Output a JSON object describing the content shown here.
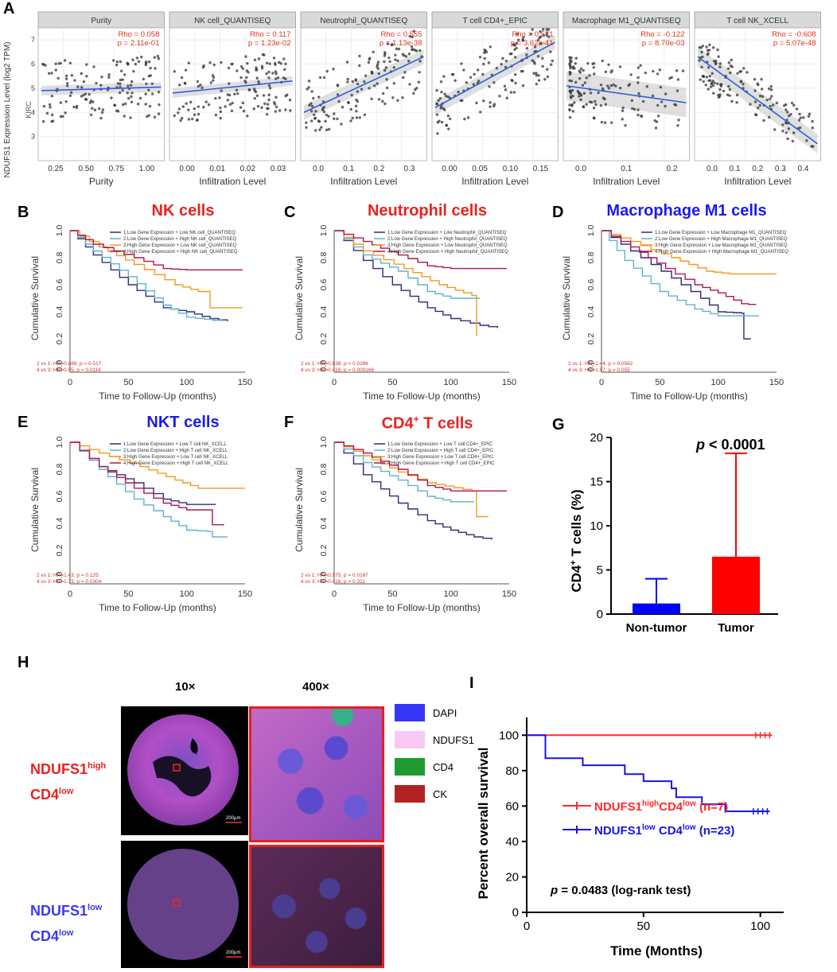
{
  "panels": {
    "A": "A",
    "B": "B",
    "C": "C",
    "D": "D",
    "E": "E",
    "F": "F",
    "G": "G",
    "H": "H",
    "I": "I"
  },
  "panelA": {
    "ylabel": "NDUFS1 Expression Level (log2 TPM)",
    "strip": "KIRC",
    "yticks": [
      "3",
      "4",
      "5",
      "6",
      "7"
    ],
    "subplots": [
      {
        "title": "Purity",
        "rho": "Rho = 0.058",
        "p": "p = 2.11e-01",
        "xlabel": "Purity",
        "xticks": [
          "0.25",
          "0.50",
          "0.75",
          "1.00"
        ],
        "fit": [
          4.9,
          5.05
        ],
        "spread": 0.2
      },
      {
        "title": "NK cell_QUANTISEQ",
        "rho": "Rho = 0.117",
        "p": "p = 1.23e-02",
        "xlabel": "Infiltration Level",
        "xticks": [
          "0.00",
          "0.01",
          "0.02",
          "0.03"
        ],
        "fit": [
          4.8,
          5.3
        ],
        "spread": 0.2
      },
      {
        "title": "Neutrophil_QUANTISEQ",
        "rho": "Rho = 0.555",
        "p": "p = 1.13e-38",
        "xlabel": "Infiltration Level",
        "xticks": [
          "0.0",
          "0.1",
          "0.2",
          "0.3"
        ],
        "fit": [
          4.0,
          6.3
        ],
        "spread": 0.3
      },
      {
        "title": "T cell CD4+_EPIC",
        "rho": "Rho = 0.571",
        "p": "p = 3.62e-41",
        "xlabel": "Infiltration Level",
        "xticks": [
          "0.00",
          "0.05",
          "0.10",
          "0.15"
        ],
        "fit": [
          4.2,
          6.9
        ],
        "spread": 0.3
      },
      {
        "title": "Macrophage M1_QUANTISEQ",
        "rho": "Rho = -0.122",
        "p": "p = 8.70e-03",
        "xlabel": "Infiltration Level",
        "xticks": [
          "0.0",
          "0.1",
          "0.2"
        ],
        "fit": [
          5.1,
          4.4
        ],
        "spread": 0.6
      },
      {
        "title": "T cell NK_XCELL",
        "rho": "Rho = -0.608",
        "p": "p = 5.07e-48",
        "xlabel": "Infiltration Level",
        "xticks": [
          "0.0",
          "0.1",
          "0.2",
          "0.3",
          "0.4"
        ],
        "fit": [
          6.3,
          2.7
        ],
        "spread": 0.4
      }
    ]
  },
  "km": {
    "ylabel": "Cumulative Survival",
    "xlabel": "Time to Follow-Up (months)",
    "yticks": [
      "0.0",
      "0.2",
      "0.4",
      "0.6",
      "0.8",
      "1.0"
    ],
    "xticks": [
      "0",
      "50",
      "100",
      "150"
    ],
    "colors": [
      "#2e2e7a",
      "#5fb3cf",
      "#f39a1e",
      "#b2164b"
    ],
    "plots": [
      {
        "id": "B",
        "title": "NK cells",
        "titleColor": "#e8231f",
        "legend": [
          "1:Low Gene Expression + Low NK cell_QUANTISEQ",
          "2:Low Gene Expression + High NK cell_QUANTISEQ",
          "3:High Gene Expression + Low NK cell_QUANTISEQ",
          "4:High Gene Expression + High NK cell_QUANTISEQ"
        ],
        "stats": [
          "2 vs 1: HR=0.888, p = 0.517",
          "4 vs 3: HR=0.55, p = 0.0116"
        ],
        "curves": [
          [
            [
              0,
              1
            ],
            [
              20,
              0.82
            ],
            [
              50,
              0.6
            ],
            [
              80,
              0.43
            ],
            [
              100,
              0.4
            ],
            [
              120,
              0.35
            ],
            [
              135,
              0.33
            ]
          ],
          [
            [
              0,
              1
            ],
            [
              20,
              0.85
            ],
            [
              50,
              0.66
            ],
            [
              80,
              0.45
            ],
            [
              100,
              0.36
            ],
            [
              130,
              0.33
            ]
          ],
          [
            [
              0,
              1
            ],
            [
              25,
              0.88
            ],
            [
              55,
              0.75
            ],
            [
              90,
              0.6
            ],
            [
              110,
              0.55
            ],
            [
              120,
              0.43
            ],
            [
              148,
              0.43
            ]
          ],
          [
            [
              0,
              1
            ],
            [
              20,
              0.9
            ],
            [
              55,
              0.8
            ],
            [
              80,
              0.72
            ],
            [
              100,
              0.71
            ],
            [
              148,
              0.71
            ]
          ]
        ]
      },
      {
        "id": "C",
        "title": "Neutrophil cells",
        "titleColor": "#e8231f",
        "legend": [
          "1:Low Gene Expression + Low Neutrophil_QUANTISEQ",
          "2:Low Gene Expression + High Neutrophil_QUANTISEQ",
          "3:High Gene Expression + Low Neutrophil_QUANTISEQ",
          "4:High Gene Expression + High Neutrophil_QUANTISEQ"
        ],
        "stats": [
          "2 vs 1: HR=0.638, p = 0.0286",
          "4 vs 3: HR=0.416, p = 0.000166"
        ],
        "curves": [
          [
            [
              0,
              1
            ],
            [
              25,
              0.78
            ],
            [
              50,
              0.6
            ],
            [
              80,
              0.43
            ],
            [
              100,
              0.35
            ],
            [
              125,
              0.3
            ],
            [
              140,
              0.28
            ]
          ],
          [
            [
              0,
              1
            ],
            [
              25,
              0.82
            ],
            [
              55,
              0.7
            ],
            [
              80,
              0.55
            ],
            [
              100,
              0.5
            ],
            [
              125,
              0.5
            ]
          ],
          [
            [
              0,
              1
            ],
            [
              25,
              0.85
            ],
            [
              60,
              0.72
            ],
            [
              90,
              0.6
            ],
            [
              118,
              0.52
            ],
            [
              122,
              0.22
            ]
          ],
          [
            [
              0,
              1
            ],
            [
              25,
              0.92
            ],
            [
              55,
              0.82
            ],
            [
              80,
              0.74
            ],
            [
              100,
              0.72
            ],
            [
              148,
              0.72
            ]
          ]
        ]
      },
      {
        "id": "D",
        "title": "Macrophage M1 cells",
        "titleColor": "#1a1aef",
        "legend": [
          "1:Low Gene Expression + Low Macrophage M1_QUANTISEQ",
          "2:Low Gene Expression + High Macrophage M1_QUANTISEQ",
          "3:High Gene Expression + Low Macrophage M1_QUANTISEQ",
          "4:High Gene Expression + High Macrophage M1_QUANTISEQ"
        ],
        "stats": [
          "2 vs 1: HR=1.44, p = 0.0562",
          "4 vs 3: HR=1.57, p = 0.055"
        ],
        "curves": [
          [
            [
              0,
              1
            ],
            [
              25,
              0.85
            ],
            [
              60,
              0.65
            ],
            [
              85,
              0.5
            ],
            [
              100,
              0.4
            ],
            [
              120,
              0.39
            ],
            [
              122,
              0.2
            ],
            [
              128,
              0.2
            ]
          ],
          [
            [
              0,
              1
            ],
            [
              20,
              0.78
            ],
            [
              50,
              0.55
            ],
            [
              80,
              0.42
            ],
            [
              100,
              0.37
            ],
            [
              135,
              0.37
            ]
          ],
          [
            [
              0,
              1
            ],
            [
              25,
              0.92
            ],
            [
              60,
              0.8
            ],
            [
              90,
              0.7
            ],
            [
              110,
              0.68
            ],
            [
              150,
              0.68
            ]
          ],
          [
            [
              0,
              1
            ],
            [
              25,
              0.88
            ],
            [
              55,
              0.72
            ],
            [
              80,
              0.6
            ],
            [
              100,
              0.54
            ],
            [
              120,
              0.46
            ],
            [
              132,
              0.45
            ]
          ]
        ]
      },
      {
        "id": "E",
        "title": "NKT cells",
        "titleColor": "#1a1aef",
        "legend": [
          "1:Low Gene Expression + Low T cell NK_XCELL",
          "2:Low Gene Expression + High T cell NK_XCELL",
          "3:High Gene Expression + Low T cell NK_XCELL",
          "4:High Gene Expression + High T cell NK_XCELL"
        ],
        "stats": [
          "2 vs 1: HR=1.43, p = 0.125",
          "4 vs 3: HR=1.73, p = 0.0304"
        ],
        "curves": [
          [
            [
              0,
              1
            ],
            [
              25,
              0.82
            ],
            [
              55,
              0.7
            ],
            [
              80,
              0.58
            ],
            [
              100,
              0.54
            ],
            [
              125,
              0.54
            ]
          ],
          [
            [
              0,
              1
            ],
            [
              25,
              0.8
            ],
            [
              55,
              0.58
            ],
            [
              80,
              0.45
            ],
            [
              100,
              0.35
            ],
            [
              118,
              0.34
            ],
            [
              122,
              0.3
            ],
            [
              135,
              0.3
            ]
          ],
          [
            [
              0,
              1
            ],
            [
              25,
              0.92
            ],
            [
              60,
              0.82
            ],
            [
              90,
              0.72
            ],
            [
              110,
              0.66
            ],
            [
              150,
              0.66
            ]
          ],
          [
            [
              0,
              1
            ],
            [
              25,
              0.82
            ],
            [
              55,
              0.66
            ],
            [
              80,
              0.55
            ],
            [
              100,
              0.5
            ],
            [
              120,
              0.5
            ],
            [
              122,
              0.39
            ],
            [
              132,
              0.39
            ]
          ]
        ]
      },
      {
        "id": "F",
        "title": "CD4+ T cells",
        "titleMain": "CD4",
        "titleSup": "+",
        "titleRest": " T cells",
        "titleColor": "#e8231f",
        "legend": [
          "1:Low Gene Expression + Low T cell CD4+_EPIC",
          "2:Low Gene Expression + High T cell CD4+_EPIC",
          "3:High Gene Expression + Low T cell CD4+_EPIC",
          "4:High Gene Expression + High T cell CD4+_EPIC"
        ],
        "stats": [
          "2 vs 1: HR=0.575, p = 0.0187",
          "4 vs 3: HR=0.416, p = 0.311"
        ],
        "curves": [
          [
            [
              0,
              1
            ],
            [
              25,
              0.76
            ],
            [
              55,
              0.55
            ],
            [
              80,
              0.42
            ],
            [
              100,
              0.35
            ],
            [
              120,
              0.3
            ],
            [
              135,
              0.28
            ]
          ],
          [
            [
              0,
              1
            ],
            [
              25,
              0.85
            ],
            [
              55,
              0.72
            ],
            [
              80,
              0.6
            ],
            [
              100,
              0.56
            ],
            [
              120,
              0.56
            ]
          ],
          [
            [
              0,
              1
            ],
            [
              25,
              0.9
            ],
            [
              55,
              0.78
            ],
            [
              80,
              0.7
            ],
            [
              118,
              0.64
            ],
            [
              122,
              0.45
            ],
            [
              132,
              0.45
            ]
          ],
          [
            [
              0,
              1
            ],
            [
              25,
              0.92
            ],
            [
              55,
              0.8
            ],
            [
              80,
              0.68
            ],
            [
              100,
              0.64
            ],
            [
              148,
              0.64
            ]
          ]
        ]
      }
    ]
  },
  "panelG": {
    "ylabel_main": "CD4",
    "ylabel_sup": "+",
    "ylabel_rest": " T cells (%)",
    "yticks": [
      "0",
      "5",
      "10",
      "15",
      "20"
    ],
    "annotation_p": "p",
    "annotation_rest": " < 0.0001",
    "categories": [
      "Non-tumor",
      "Tumor"
    ],
    "chart_data": {
      "type": "bar",
      "categories": [
        "Non-tumor",
        "Tumor"
      ],
      "values": [
        1.2,
        6.5
      ],
      "errors_upper": [
        4.0,
        18.2
      ],
      "colors": [
        "#0000ff",
        "#ff0000"
      ],
      "ylim": [
        0,
        20
      ],
      "ylabel": "CD4+ T cells (%)",
      "annotation": "p < 0.0001"
    }
  },
  "panelH": {
    "mag1": "10×",
    "mag2": "400×",
    "row1_l1": "NDUFS1",
    "row1_sup": "high",
    "row1_l2": "CD4",
    "row1_sup2": "low",
    "row2_l1": "NDUFS1",
    "row2_sup": "low",
    "row2_l2": "CD4",
    "row2_sup2": "low",
    "scalebar": "200μm",
    "legend": [
      {
        "label": "DAPI",
        "color": "#3535f5"
      },
      {
        "label": "NDUFS1",
        "color": "#f8c8f4"
      },
      {
        "label": "CD4",
        "color": "#1f9a2f"
      },
      {
        "label": "CK",
        "color": "#b22222"
      }
    ]
  },
  "panelI": {
    "ylabel": "Percent overall survival",
    "xlabel": "Time (Months)",
    "yticks": [
      "0",
      "20",
      "40",
      "60",
      "80",
      "100"
    ],
    "xticks": [
      "0",
      "50",
      "100"
    ],
    "legend1_main": "NDUFS1",
    "legend1_sup": "high",
    "legend1_mid": "CD4",
    "legend1_sup2": "low",
    "legend1_n": " (n=7)",
    "legend2_main": "NDUFS1",
    "legend2_sup": "low",
    "legend2_mid": " CD4",
    "legend2_sup2": "low",
    "legend2_n": " (n=23)",
    "pval_p": "p",
    "pval_rest": " = 0.0483 (log-rank test)",
    "chart_data": {
      "type": "line",
      "series": [
        {
          "name": "NDUFS1high CD4low (n=7)",
          "color": "#ff2a2a",
          "points": [
            [
              0,
              100
            ],
            [
              105,
              100
            ]
          ]
        },
        {
          "name": "NDUFS1low CD4low (n=23)",
          "color": "#1515e5",
          "points": [
            [
              0,
              100
            ],
            [
              8,
              100
            ],
            [
              8,
              87
            ],
            [
              24,
              87
            ],
            [
              24,
              83
            ],
            [
              42,
              83
            ],
            [
              42,
              78
            ],
            [
              50,
              78
            ],
            [
              50,
              74
            ],
            [
              62,
              74
            ],
            [
              62,
              70
            ],
            [
              64,
              70
            ],
            [
              64,
              65
            ],
            [
              75,
              65
            ],
            [
              75,
              61
            ],
            [
              85,
              61
            ],
            [
              85,
              57
            ],
            [
              104,
              57
            ]
          ]
        }
      ],
      "xlim": [
        0,
        110
      ],
      "ylim": [
        0,
        110
      ]
    }
  }
}
